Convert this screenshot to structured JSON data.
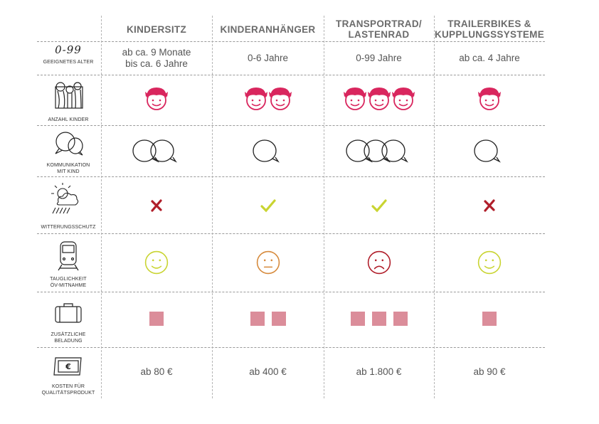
{
  "columns": [
    "KINDERSITZ",
    "KINDERANHÄNGER",
    "TRANSPORTRAD/ LASTENRAD",
    "TRAILERBIKES & KUPPLUNGSSYSTEME"
  ],
  "columns_line2": [
    "",
    "",
    "LASTENRAD",
    "KUPPLUNGSSYSTEME"
  ],
  "columns_line1": [
    "KINDERSITZ",
    "KINDERANHÄNGER",
    "TRANSPORTRAD/",
    "TRAILERBIKES &"
  ],
  "rows": {
    "age": {
      "icon_text": "0-99",
      "label": "GEEIGNETES ALTER",
      "values_line1": [
        "ab ca. 9 Monate",
        "0-6 Jahre",
        "0-99 Jahre",
        "ab ca. 4 Jahre"
      ],
      "values_line2": [
        "bis ca. 6 Jahre",
        "",
        "",
        ""
      ]
    },
    "children": {
      "label": "ANZAHL KINDER",
      "counts": [
        1,
        2,
        3,
        1
      ],
      "icon": "kid-face-icon"
    },
    "communication": {
      "label_line1": "KOMMUNIKATION",
      "label_line2": "MIT KIND",
      "bubbles": [
        2,
        1,
        3,
        1
      ],
      "icon": "speech-bubble-icon"
    },
    "weather": {
      "label": "WITTERUNGSSCHUTZ",
      "marks": [
        "cross",
        "check",
        "check",
        "cross"
      ],
      "cross_color": "#b01e2a",
      "check_color": "#c9d431"
    },
    "transit": {
      "label_line1": "TAUGLICHKEIT",
      "label_line2": "ÖV-MITNAHME",
      "moods": [
        "happy",
        "neutral",
        "sad",
        "happy"
      ],
      "mood_colors": {
        "happy": "#c9d431",
        "neutral": "#d68a3c",
        "sad": "#b01e2a"
      }
    },
    "luggage": {
      "label_line1": "ZUSÄTZLICHE",
      "label_line2": "BELADUNG",
      "squares": [
        1,
        2,
        3,
        1
      ],
      "square_color": "#db8d9a"
    },
    "cost": {
      "label_line1": "KOSTEN FÜR",
      "label_line2": "QUALITÄTSPRODUKT",
      "icon_text": "€",
      "values": [
        "ab 80 €",
        "ab 400 €",
        "ab 1.800 €",
        "ab 90 €"
      ]
    }
  },
  "accent_color": "#d9265e"
}
